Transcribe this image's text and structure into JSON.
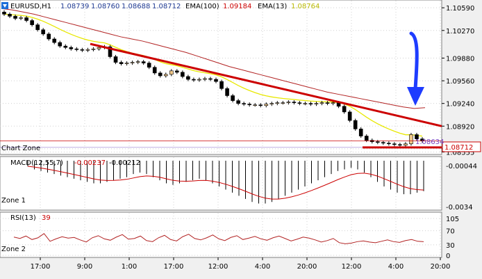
{
  "header": {
    "symbol": "EURUSD,H1",
    "open": "1.08739",
    "high": "1.08760",
    "low": "1.08688",
    "close": "1.08712",
    "ema_long_label": "EMA(100)",
    "ema_long_value": "1.09184",
    "ema_short_label": "EMA(13)",
    "ema_short_value": "1.08764"
  },
  "colors": {
    "background": "#ffffff",
    "candle_up": "#000000",
    "candle_body": "#f2c98a",
    "ema_long": "#b22222",
    "ema_short": "#e8e800",
    "trendline": "#cc0000",
    "arrow": "#1e3cff",
    "macd_hist": "#000000",
    "macd_signal": "#cc0000",
    "rsi_line": "#b22222"
  },
  "annotations": {
    "zone_main": "Chart Zone",
    "zone_1": "Zone 1",
    "zone_2": "Zone 2",
    "current_price_label": "1.08712",
    "inner_price_label": "1.08634"
  },
  "macd": {
    "label": "MACD(12,55,7)",
    "value1": "-0.00237",
    "value2": "-0.00212",
    "axis_top": "-0.00044",
    "axis_bottom": "-0.0034"
  },
  "rsi": {
    "label": "RSI(13)",
    "value": "39"
  },
  "chart_data": {
    "type": "candlestick",
    "price_ticks": [
      "1.10590",
      "1.10270",
      "1.09880",
      "1.09560",
      "1.09240",
      "1.08920",
      "1.08600",
      "1.08555"
    ],
    "price_tick_values": [
      1.1059,
      1.1027,
      1.0988,
      1.0956,
      1.0924,
      1.0892,
      1.086,
      1.08555
    ],
    "ylim": [
      1.0853,
      1.1069
    ],
    "time_ticks": [
      "17:00",
      "9:00",
      "1:00",
      "17:00",
      "12:00",
      "4:00",
      "20:00",
      "12:00",
      "4:00",
      "20:00"
    ],
    "rsi_ticks": [
      "105",
      "70",
      "30",
      "0"
    ],
    "rsi_tick_values": [
      105,
      70,
      30,
      0
    ],
    "close_series": [
      1.105,
      1.1047,
      1.1044,
      1.1045,
      1.1041,
      1.1035,
      1.1028,
      1.1022,
      1.1015,
      1.101,
      1.1005,
      1.1003,
      1.1001,
      1.1,
      1.0999,
      1.1,
      1.1001,
      1.1003,
      1.1004,
      1.099,
      1.0982,
      1.098,
      1.0981,
      1.0982,
      1.0983,
      1.0981,
      1.0975,
      1.0967,
      1.0963,
      1.0965,
      1.097,
      1.0968,
      1.0962,
      1.0958,
      1.0957,
      1.0958,
      1.0959,
      1.0958,
      1.0955,
      1.0945,
      1.0935,
      1.0928,
      1.0924,
      1.0923,
      1.0922,
      1.0922,
      1.0921,
      1.0923,
      1.0924,
      1.0925,
      1.0925,
      1.0926,
      1.0925,
      1.0924,
      1.0924,
      1.0923,
      1.0924,
      1.0925,
      1.0924,
      1.0925,
      1.092,
      1.0912,
      1.09,
      1.0888,
      1.0878,
      1.0872,
      1.087,
      1.0869,
      1.0868,
      1.0867,
      1.0866,
      1.0865,
      1.0867,
      1.088,
      1.0874,
      1.0871
    ],
    "ema100_series": [
      1.1058,
      1.1056,
      1.1053,
      1.105,
      1.1046,
      1.1042,
      1.1038,
      1.1034,
      1.103,
      1.1026,
      1.1022,
      1.1018,
      1.1015,
      1.1012,
      1.1008,
      1.1004,
      1.1,
      1.0996,
      1.0991,
      1.0986,
      1.0981,
      1.0976,
      1.0972,
      1.0968,
      1.0964,
      1.096,
      1.0956,
      1.0952,
      1.0948,
      1.0944,
      1.094,
      1.0937,
      1.0934,
      1.0931,
      1.0928,
      1.0925,
      1.0922,
      1.0919,
      1.0917,
      1.0918
    ],
    "rsi_series": [
      52,
      48,
      55,
      45,
      50,
      62,
      40,
      47,
      53,
      49,
      51,
      44,
      38,
      50,
      56,
      47,
      43,
      52,
      59,
      46,
      48,
      55,
      42,
      39,
      50,
      57,
      45,
      41,
      53,
      60,
      48,
      44,
      50,
      58,
      47,
      42,
      51,
      56,
      45,
      49,
      54,
      47,
      43,
      50,
      55,
      48,
      41,
      46,
      52,
      49,
      44,
      38,
      42,
      48,
      36,
      33,
      35,
      39,
      41,
      38,
      36,
      40,
      44,
      39,
      37,
      42,
      45,
      40,
      39
    ],
    "macd_hist_series": [
      -0.0008,
      -0.001,
      -0.0011,
      -0.0012,
      -0.0013,
      -0.0014,
      -0.0015,
      -0.0016,
      -0.0017,
      -0.0018,
      -0.0019,
      -0.0019,
      -0.0018,
      -0.0017,
      -0.0016,
      -0.0015,
      -0.0013,
      -0.0012,
      -0.0013,
      -0.0015,
      -0.0017,
      -0.0019,
      -0.002,
      -0.0019,
      -0.0018,
      -0.0017,
      -0.0016,
      -0.0017,
      -0.0019,
      -0.0021,
      -0.0023,
      -0.0025,
      -0.0027,
      -0.0029,
      -0.0031,
      -0.0032,
      -0.0032,
      -0.0031,
      -0.0029,
      -0.0027,
      -0.0025,
      -0.0023,
      -0.0021,
      -0.0019,
      -0.0017,
      -0.0015,
      -0.0013,
      -0.0011,
      -0.001,
      -0.0009,
      -0.001,
      -0.0012,
      -0.0015,
      -0.0018,
      -0.0021,
      -0.0023,
      -0.0025,
      -0.0026,
      -0.0026,
      -0.0025,
      -0.0024
    ],
    "trendline": {
      "start_price": 1.1008,
      "end_price": 1.0892
    },
    "support_line": {
      "price": 1.0862
    }
  }
}
